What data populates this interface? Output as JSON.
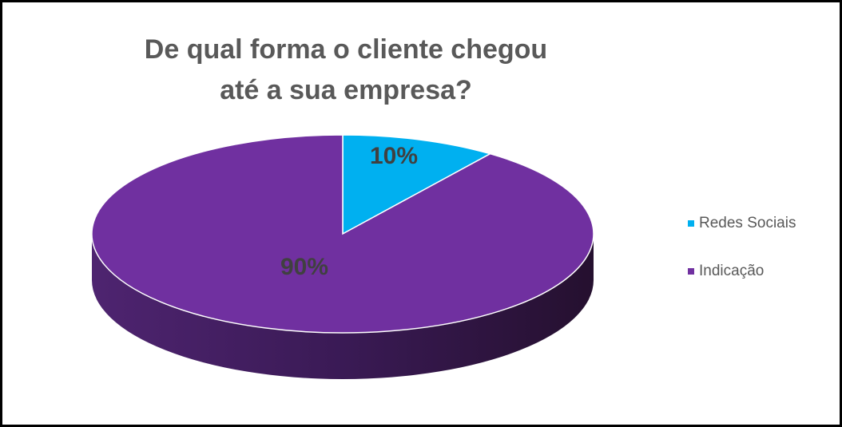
{
  "chart_data": {
    "type": "pie",
    "title": "De qual forma o cliente chegou até a sua empresa?",
    "categories": [
      "Redes Sociais",
      "Indicação"
    ],
    "values": [
      10,
      90
    ],
    "value_labels": [
      "10%",
      "90%"
    ],
    "colors": [
      "#00b0f0",
      "#7030a0"
    ],
    "legend": "right"
  }
}
